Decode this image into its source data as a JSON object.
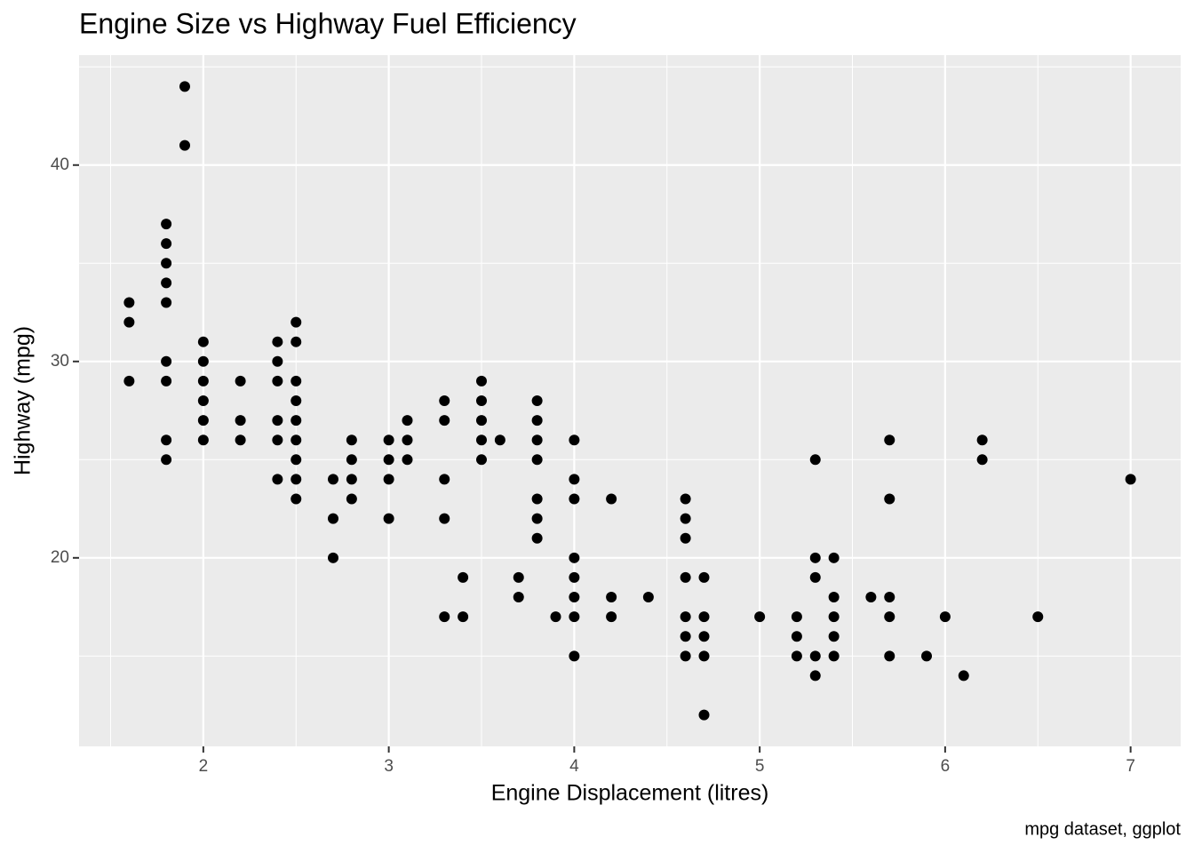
{
  "chart_data": {
    "type": "scatter",
    "title": "Engine Size vs Highway Fuel Efficiency",
    "x_label": "Engine Displacement (litres)",
    "y_label": "Highway (mpg)",
    "caption": "mpg dataset, ggplot",
    "color": "#000000",
    "x": [
      1.6,
      1.6,
      1.6,
      1.8,
      1.8,
      1.8,
      1.8,
      1.8,
      1.8,
      1.8,
      1.8,
      1.8,
      1.9,
      1.9,
      2.0,
      2.0,
      2.0,
      2.0,
      2.0,
      2.0,
      2.2,
      2.2,
      2.2,
      2.4,
      2.4,
      2.4,
      2.4,
      2.4,
      2.4,
      2.5,
      2.5,
      2.5,
      2.5,
      2.5,
      2.5,
      2.5,
      2.5,
      2.5,
      2.7,
      2.7,
      2.7,
      2.8,
      2.8,
      2.8,
      2.8,
      3.0,
      3.0,
      3.0,
      3.0,
      3.1,
      3.1,
      3.1,
      3.3,
      3.3,
      3.3,
      3.3,
      3.3,
      3.4,
      3.4,
      3.5,
      3.5,
      3.5,
      3.5,
      3.5,
      3.6,
      3.7,
      3.7,
      3.8,
      3.8,
      3.8,
      3.8,
      3.8,
      3.8,
      3.8,
      3.9,
      4.0,
      4.0,
      4.0,
      4.0,
      4.0,
      4.0,
      4.0,
      4.0,
      4.2,
      4.2,
      4.2,
      4.4,
      4.6,
      4.6,
      4.6,
      4.6,
      4.6,
      4.6,
      4.6,
      4.7,
      4.7,
      4.7,
      4.7,
      4.7,
      5.0,
      5.2,
      5.2,
      5.2,
      5.3,
      5.3,
      5.3,
      5.3,
      5.3,
      5.4,
      5.4,
      5.4,
      5.4,
      5.4,
      5.6,
      5.7,
      5.7,
      5.7,
      5.7,
      5.7,
      5.9,
      6.0,
      6.1,
      6.2,
      6.2,
      6.5,
      7.0
    ],
    "values": [
      33,
      32,
      29,
      37,
      36,
      35,
      34,
      33,
      30,
      29,
      26,
      25,
      44,
      41,
      31,
      30,
      29,
      28,
      27,
      26,
      29,
      27,
      26,
      31,
      30,
      29,
      27,
      26,
      24,
      32,
      31,
      29,
      28,
      27,
      26,
      25,
      24,
      23,
      24,
      22,
      20,
      26,
      25,
      24,
      23,
      26,
      25,
      24,
      22,
      27,
      26,
      25,
      28,
      27,
      24,
      22,
      17,
      19,
      17,
      29,
      28,
      27,
      26,
      25,
      26,
      19,
      18,
      28,
      27,
      26,
      25,
      23,
      22,
      21,
      17,
      26,
      24,
      23,
      20,
      19,
      18,
      17,
      15,
      23,
      18,
      17,
      18,
      23,
      22,
      21,
      19,
      17,
      16,
      15,
      19,
      17,
      16,
      15,
      12,
      17,
      17,
      16,
      15,
      25,
      20,
      19,
      15,
      14,
      20,
      18,
      17,
      16,
      15,
      18,
      26,
      23,
      18,
      17,
      15,
      15,
      17,
      14,
      26,
      25,
      17,
      24
    ],
    "xlim": [
      1.33,
      7.27
    ],
    "ylim": [
      10.4,
      45.6
    ],
    "xticks": [
      2,
      3,
      4,
      5,
      6,
      7
    ],
    "yticks": [
      20,
      30,
      40
    ],
    "xminor": [
      1.5,
      2.5,
      3.5,
      4.5,
      5.5,
      6.5
    ],
    "yminor": [
      15,
      25,
      35,
      45
    ],
    "grid": true
  }
}
